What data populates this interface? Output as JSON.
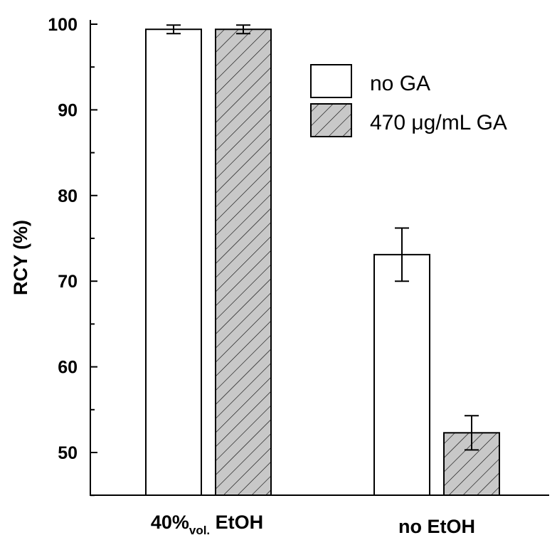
{
  "chart_data": {
    "type": "bar",
    "ylabel": "RCY (%)",
    "ylim": [
      45,
      100
    ],
    "yticks": [
      50,
      60,
      70,
      80,
      90,
      100
    ],
    "categories": [
      {
        "main": "40%",
        "sub": "vol.",
        "rest": " EtOH"
      },
      {
        "main": "no EtOH",
        "sub": "",
        "rest": ""
      }
    ],
    "series": [
      {
        "name": "no GA",
        "fill": "#ffffff",
        "pattern": "none",
        "values": [
          99.4,
          73.1
        ],
        "errors": [
          0.5,
          3.1
        ]
      },
      {
        "name": "470 μg/mL GA",
        "fill": "#c8c8c8",
        "pattern": "diagonal-hatch",
        "values": [
          99.4,
          52.3
        ],
        "errors": [
          0.5,
          2.0
        ]
      }
    ],
    "legend_position": "top-right",
    "grid": false
  }
}
